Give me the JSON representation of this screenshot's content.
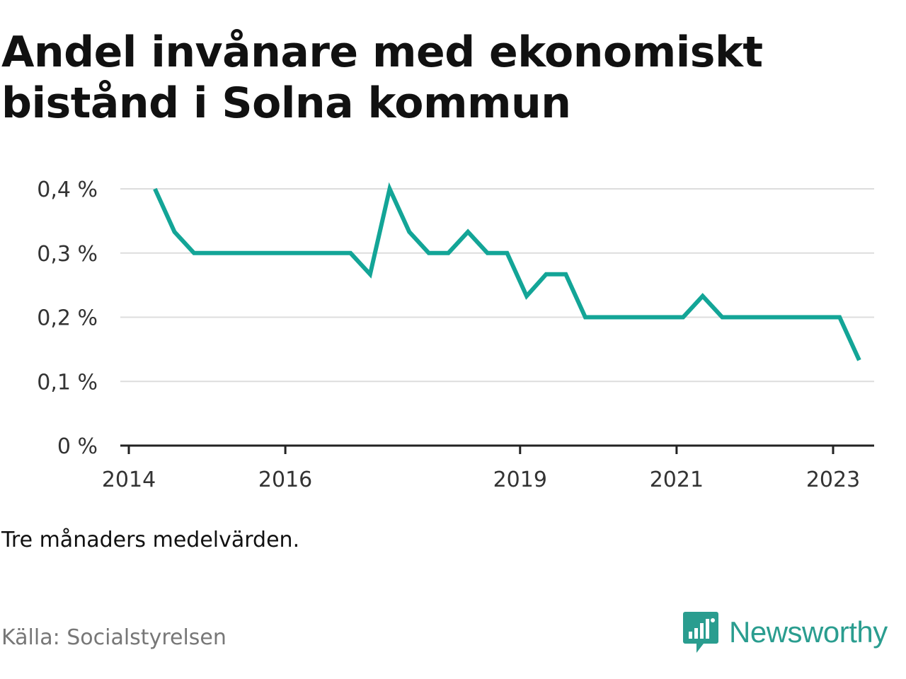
{
  "title": "Andel invånare med ekonomiskt bistånd i Solna kommun",
  "note": "Tre månaders medelvärden.",
  "source": "Källa: Socialstyrelsen",
  "brand": {
    "name": "Newsworthy",
    "icon": "newsworthy-logo-icon",
    "color": "#2a9d8f"
  },
  "colors": {
    "line": "#13a597",
    "grid": "#dddddd",
    "axis": "#222222",
    "text": "#111111",
    "muted": "#777777"
  },
  "chart_data": {
    "type": "line",
    "title": "Andel invånare med ekonomiskt bistånd i Solna kommun",
    "xlabel": "",
    "ylabel": "",
    "ylim": [
      0,
      0.4
    ],
    "grid": true,
    "x_ticks": [
      {
        "label": "2014",
        "date": "2014-01-01"
      },
      {
        "label": "2016",
        "date": "2016-01-01"
      },
      {
        "label": "2019",
        "date": "2019-01-01"
      },
      {
        "label": "2021",
        "date": "2021-01-01"
      },
      {
        "label": "2023",
        "date": "2023-01-01"
      }
    ],
    "y_ticks": [
      {
        "label": "0 %",
        "value": 0
      },
      {
        "label": "0,1 %",
        "value": 0.1
      },
      {
        "label": "0,2 %",
        "value": 0.2
      },
      {
        "label": "0,3 %",
        "value": 0.3
      },
      {
        "label": "0,4 %",
        "value": 0.4
      }
    ],
    "series": [
      {
        "points": [
          [
            "2014-05",
            0.4
          ],
          [
            "2014-08",
            0.333
          ],
          [
            "2014-11",
            0.3
          ],
          [
            "2015-02",
            0.3
          ],
          [
            "2015-05",
            0.3
          ],
          [
            "2015-08",
            0.3
          ],
          [
            "2015-11",
            0.3
          ],
          [
            "2016-02",
            0.3
          ],
          [
            "2016-05",
            0.3
          ],
          [
            "2016-08",
            0.3
          ],
          [
            "2016-11",
            0.3
          ],
          [
            "2017-02",
            0.267
          ],
          [
            "2017-05",
            0.4
          ],
          [
            "2017-08",
            0.333
          ],
          [
            "2017-11",
            0.3
          ],
          [
            "2018-02",
            0.3
          ],
          [
            "2018-05",
            0.333
          ],
          [
            "2018-08",
            0.3
          ],
          [
            "2018-11",
            0.3
          ],
          [
            "2019-02",
            0.233
          ],
          [
            "2019-05",
            0.267
          ],
          [
            "2019-08",
            0.267
          ],
          [
            "2019-11",
            0.2
          ],
          [
            "2020-02",
            0.2
          ],
          [
            "2020-05",
            0.2
          ],
          [
            "2020-08",
            0.2
          ],
          [
            "2020-11",
            0.2
          ],
          [
            "2021-02",
            0.2
          ],
          [
            "2021-05",
            0.233
          ],
          [
            "2021-08",
            0.2
          ],
          [
            "2021-11",
            0.2
          ],
          [
            "2022-02",
            0.2
          ],
          [
            "2022-05",
            0.2
          ],
          [
            "2022-08",
            0.2
          ],
          [
            "2022-11",
            0.2
          ],
          [
            "2023-02",
            0.2
          ],
          [
            "2023-05",
            0.133
          ]
        ]
      }
    ]
  }
}
